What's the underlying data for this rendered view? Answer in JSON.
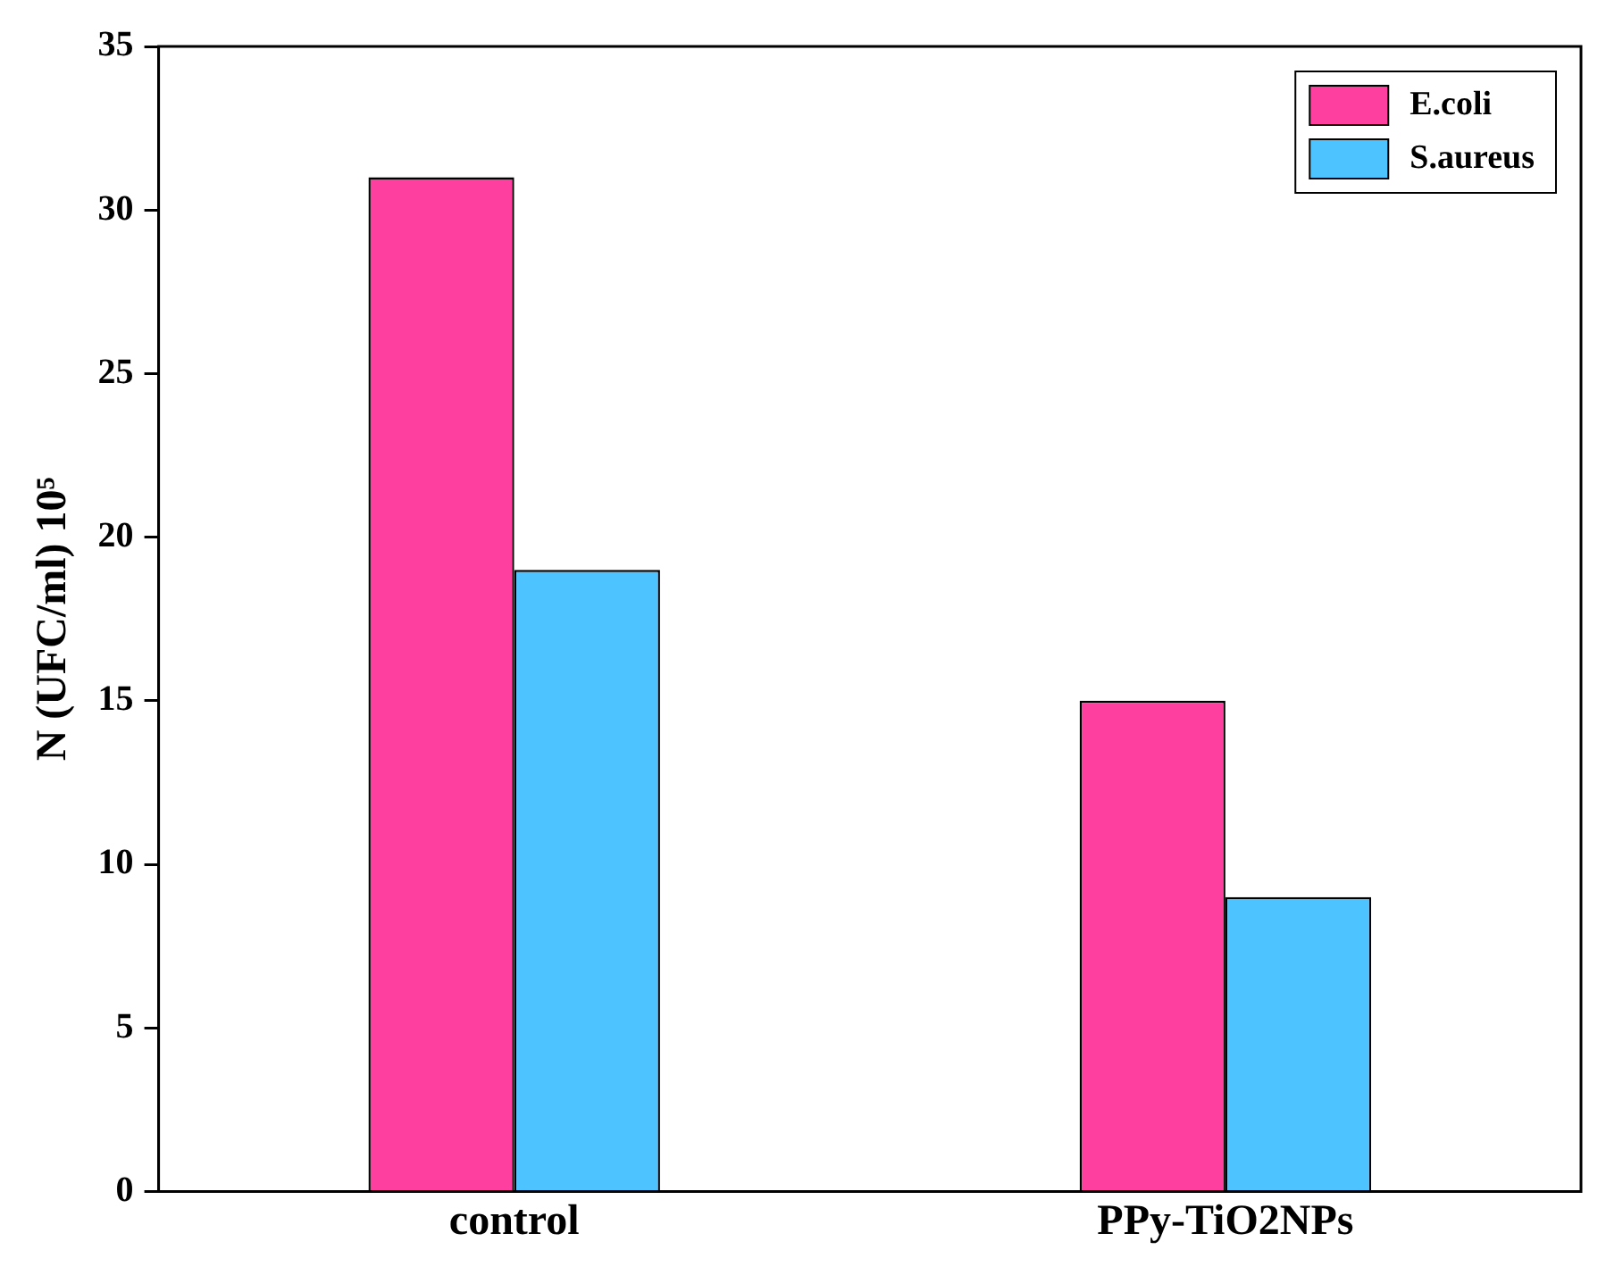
{
  "chart_data": {
    "type": "bar",
    "ylabel": "N (UFC/ml) 10⁵",
    "categories": [
      "control",
      "PPy-TiO2NPs"
    ],
    "series": [
      {
        "name": "E.coli",
        "color": "#ff3fa0",
        "values": [
          31,
          15
        ]
      },
      {
        "name": "S.aureus",
        "color": "#4dc3ff",
        "values": [
          19,
          9
        ]
      }
    ],
    "ylim": [
      0,
      35
    ],
    "yticks": [
      0,
      5,
      10,
      15,
      20,
      25,
      30,
      35
    ],
    "grid": false,
    "legend": "top right"
  }
}
